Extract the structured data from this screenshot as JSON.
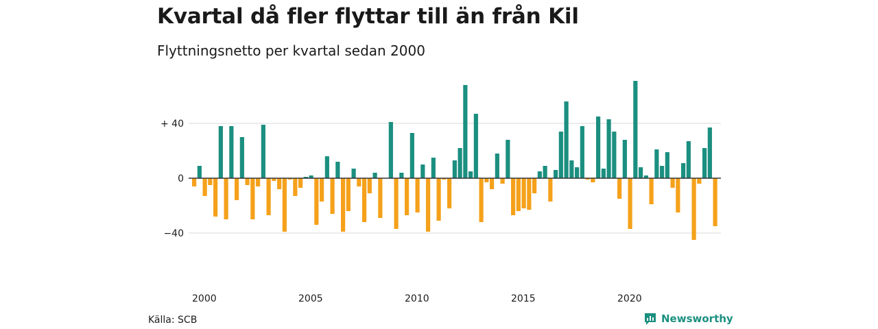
{
  "chart_data": {
    "type": "bar",
    "title": "Kvartal då fler flyttar till än från Kil",
    "subtitle": "Flyttningsnetto per kvartal sedan 2000",
    "xlabel": "",
    "ylabel": "",
    "ylim": [
      -60,
      70
    ],
    "yticks": [
      {
        "value": 40,
        "label": "+ 40"
      },
      {
        "value": 0,
        "label": "0"
      },
      {
        "value": -40,
        "label": "−40"
      }
    ],
    "xticks": [
      {
        "year": 2000,
        "label": "2000"
      },
      {
        "year": 2005,
        "label": "2005"
      },
      {
        "year": 2010,
        "label": "2010"
      },
      {
        "year": 2015,
        "label": "2015"
      },
      {
        "year": 2020,
        "label": "2020"
      }
    ],
    "start_year": 2000,
    "values": [
      -6,
      9,
      -13,
      -5,
      -28,
      38,
      -30,
      38,
      -16,
      30,
      -5,
      -30,
      -6,
      39,
      -27,
      -2,
      -8,
      -39,
      -1,
      -13,
      -7,
      1,
      2,
      -34,
      -17,
      16,
      -26,
      12,
      -39,
      -24,
      7,
      -6,
      -32,
      -11,
      4,
      -29,
      0,
      41,
      -37,
      4,
      -27,
      33,
      -25,
      10,
      -39,
      15,
      -31,
      -1,
      -22,
      13,
      22,
      68,
      5,
      47,
      -32,
      -3,
      -8,
      18,
      -4,
      28,
      -27,
      -24,
      -22,
      -23,
      -11,
      5,
      9,
      -17,
      6,
      34,
      56,
      13,
      8,
      38,
      -1,
      -3,
      45,
      7,
      43,
      34,
      -15,
      28,
      -37,
      71,
      8,
      2,
      -19,
      21,
      9,
      19,
      -7,
      -25,
      11,
      27,
      -45,
      -4,
      22,
      37,
      -35
    ],
    "colors": {
      "positive": "#1b8f80",
      "negative": "#f5a11b"
    }
  },
  "source": "Källa: SCB",
  "brand": {
    "name": "Newsworthy",
    "icon": "newsworthy-logo-icon",
    "color": "#1b8f80"
  }
}
